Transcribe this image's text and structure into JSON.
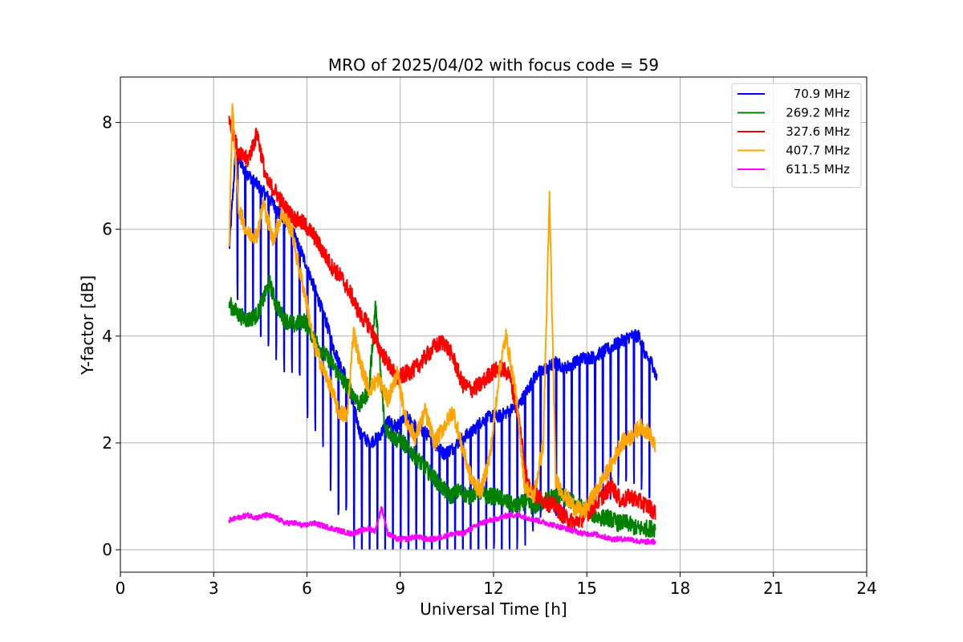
{
  "chart_data": {
    "type": "line",
    "title": "MRO of 2025/04/02 with focus code = 59",
    "xlabel": "Universal Time [h]",
    "ylabel": "Y-factor [dB]",
    "xlim": [
      0,
      24
    ],
    "ylim": [
      -0.42,
      8.85
    ],
    "xticks": [
      0,
      3,
      6,
      9,
      12,
      15,
      18,
      21,
      24
    ],
    "xtick_labels": [
      "0",
      "3",
      "6",
      "9",
      "12",
      "15",
      "18",
      "21",
      "24"
    ],
    "yticks": [
      0,
      2,
      4,
      6,
      8
    ],
    "ytick_labels": [
      "0",
      "2",
      "4",
      "6",
      "8"
    ],
    "grid": true,
    "legend_position": "top-right",
    "series": [
      {
        "name": "70.9 MHz",
        "color": "#0000ff",
        "x": [
          3.5,
          3.7,
          4.0,
          4.3,
          4.6,
          4.9,
          5.2,
          5.5,
          5.8,
          6.0,
          6.3,
          6.6,
          6.9,
          7.2,
          7.5,
          7.7,
          8.0,
          8.3,
          8.6,
          8.9,
          9.2,
          9.5,
          9.8,
          10.1,
          10.4,
          10.7,
          11.0,
          11.3,
          11.6,
          11.9,
          12.2,
          12.5,
          12.8,
          13.1,
          13.4,
          13.7,
          14.0,
          14.3,
          14.6,
          14.9,
          15.2,
          15.5,
          15.8,
          16.1,
          16.4,
          16.7,
          16.9,
          17.1,
          17.25
        ],
        "y": [
          5.6,
          7.4,
          7.1,
          6.9,
          6.7,
          6.5,
          6.2,
          6.0,
          5.6,
          5.3,
          4.8,
          4.3,
          3.7,
          3.3,
          2.7,
          2.2,
          2.0,
          2.1,
          2.4,
          2.3,
          2.5,
          2.3,
          2.2,
          2.0,
          1.8,
          1.9,
          2.1,
          2.2,
          2.4,
          2.5,
          2.5,
          2.6,
          2.7,
          3.0,
          3.3,
          3.4,
          3.5,
          3.4,
          3.5,
          3.6,
          3.6,
          3.7,
          3.8,
          3.9,
          4.0,
          4.0,
          3.6,
          3.5,
          3.2
        ],
        "dip_interval": 0.25,
        "dip_depth": 2.6
      },
      {
        "name": "269.2 MHz",
        "color": "#008000",
        "x": [
          3.5,
          3.8,
          4.1,
          4.4,
          4.8,
          5.0,
          5.3,
          5.6,
          5.9,
          6.2,
          6.5,
          6.8,
          7.1,
          7.4,
          7.7,
          8.0,
          8.2,
          8.5,
          8.8,
          9.1,
          9.4,
          9.7,
          10.0,
          10.3,
          10.6,
          10.9,
          11.2,
          11.5,
          11.8,
          12.1,
          12.4,
          12.7,
          13.0,
          13.3,
          13.6,
          13.9,
          14.2,
          14.5,
          14.8,
          15.1,
          15.4,
          15.7,
          16.0,
          16.3,
          16.6,
          16.9,
          17.2
        ],
        "y": [
          4.6,
          4.4,
          4.3,
          4.4,
          5.0,
          4.6,
          4.3,
          4.2,
          4.3,
          4.0,
          3.7,
          3.5,
          3.2,
          3.0,
          2.7,
          3.0,
          4.6,
          2.3,
          2.1,
          2.0,
          1.8,
          1.6,
          1.4,
          1.2,
          1.0,
          1.1,
          1.0,
          1.1,
          1.0,
          1.0,
          0.9,
          0.8,
          0.9,
          0.8,
          0.9,
          1.0,
          1.0,
          0.9,
          0.8,
          0.7,
          0.6,
          0.6,
          0.5,
          0.5,
          0.4,
          0.4,
          0.4
        ]
      },
      {
        "name": "327.6 MHz",
        "color": "#ff0000",
        "x": [
          3.5,
          3.8,
          4.1,
          4.4,
          4.7,
          5.0,
          5.3,
          5.6,
          5.9,
          6.2,
          6.5,
          6.8,
          7.1,
          7.4,
          7.7,
          8.0,
          8.3,
          8.6,
          8.9,
          9.2,
          9.5,
          9.8,
          10.1,
          10.4,
          10.7,
          11.0,
          11.3,
          11.6,
          11.9,
          12.2,
          12.5,
          12.8,
          13.1,
          13.4,
          13.7,
          14.0,
          14.3,
          14.6,
          14.9,
          15.2,
          15.5,
          15.8,
          16.1,
          16.4,
          16.7,
          17.0,
          17.2
        ],
        "y": [
          8.1,
          7.4,
          7.3,
          7.8,
          6.9,
          6.7,
          6.4,
          6.2,
          6.1,
          5.9,
          5.6,
          5.3,
          5.1,
          4.8,
          4.4,
          4.2,
          3.8,
          3.5,
          3.2,
          3.3,
          3.4,
          3.6,
          3.8,
          3.9,
          3.6,
          3.1,
          3.0,
          3.1,
          3.3,
          3.4,
          3.3,
          2.5,
          1.2,
          1.0,
          0.9,
          0.8,
          0.6,
          0.5,
          0.6,
          0.8,
          1.0,
          1.2,
          0.9,
          1.0,
          0.9,
          0.8,
          0.7
        ]
      },
      {
        "name": "407.7 MHz",
        "color": "#ffa500",
        "x": [
          3.5,
          3.6,
          3.8,
          4.1,
          4.4,
          4.6,
          4.9,
          5.2,
          5.5,
          5.7,
          6.0,
          6.2,
          6.5,
          6.8,
          7.0,
          7.3,
          7.5,
          7.7,
          8.0,
          8.3,
          8.6,
          8.9,
          9.2,
          9.5,
          9.8,
          10.1,
          10.4,
          10.7,
          11.0,
          11.3,
          11.6,
          11.9,
          12.2,
          12.4,
          12.7,
          13.0,
          13.3,
          13.6,
          13.8,
          14.0,
          14.3,
          14.6,
          14.9,
          15.2,
          15.5,
          15.8,
          16.1,
          16.4,
          16.7,
          17.0,
          17.2
        ],
        "y": [
          5.7,
          8.3,
          6.4,
          5.9,
          5.9,
          6.5,
          5.8,
          6.3,
          6.0,
          5.4,
          4.6,
          3.9,
          3.4,
          3.0,
          2.6,
          2.5,
          4.1,
          3.5,
          3.0,
          3.2,
          2.8,
          3.3,
          2.4,
          2.1,
          2.6,
          2.0,
          2.3,
          2.6,
          1.9,
          1.3,
          1.1,
          1.8,
          3.4,
          4.0,
          3.0,
          1.2,
          1.0,
          2.0,
          6.6,
          1.3,
          1.0,
          0.8,
          0.7,
          1.0,
          1.3,
          1.6,
          2.0,
          2.1,
          2.3,
          2.2,
          1.9
        ]
      },
      {
        "name": "611.5 MHz",
        "color": "#ff00ff",
        "x": [
          3.5,
          3.8,
          4.1,
          4.4,
          4.7,
          5.0,
          5.3,
          5.6,
          5.9,
          6.2,
          6.5,
          6.8,
          7.1,
          7.4,
          7.7,
          8.0,
          8.2,
          8.4,
          8.6,
          8.9,
          9.2,
          9.5,
          9.8,
          10.1,
          10.4,
          10.7,
          11.0,
          11.3,
          11.6,
          11.9,
          12.2,
          12.5,
          12.8,
          13.1,
          13.4,
          13.7,
          14.0,
          14.3,
          14.6,
          14.9,
          15.2,
          15.5,
          15.8,
          16.1,
          16.4,
          16.7,
          17.0,
          17.2
        ],
        "y": [
          0.55,
          0.6,
          0.65,
          0.6,
          0.65,
          0.6,
          0.5,
          0.5,
          0.45,
          0.5,
          0.45,
          0.4,
          0.35,
          0.3,
          0.35,
          0.4,
          0.35,
          0.8,
          0.3,
          0.2,
          0.2,
          0.25,
          0.2,
          0.2,
          0.25,
          0.3,
          0.3,
          0.4,
          0.5,
          0.55,
          0.6,
          0.65,
          0.65,
          0.6,
          0.55,
          0.5,
          0.45,
          0.4,
          0.35,
          0.3,
          0.3,
          0.25,
          0.2,
          0.2,
          0.2,
          0.15,
          0.15,
          0.15
        ]
      }
    ]
  }
}
